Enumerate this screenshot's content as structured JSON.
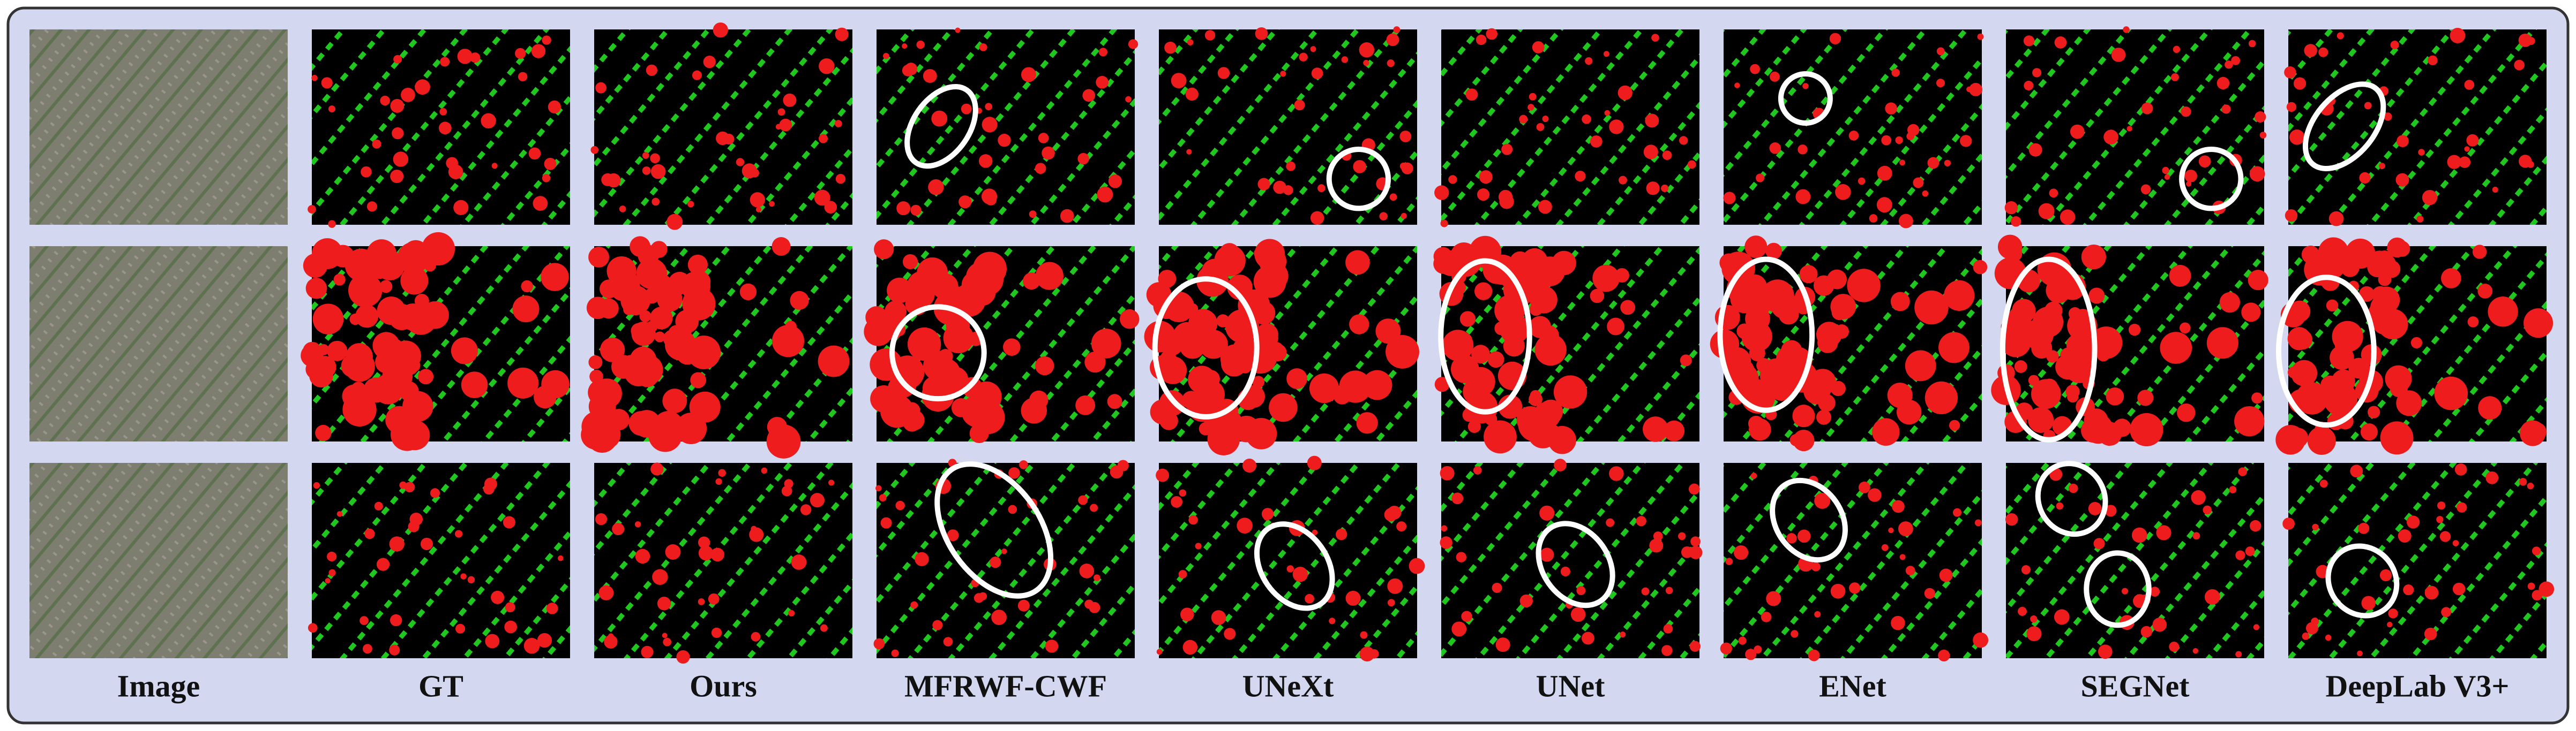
{
  "columns": [
    "Image",
    "GT",
    "Ours",
    "MFRWF-CWF",
    "UNeXt",
    "UNet",
    "ENet",
    "SEGNet",
    "DeepLab V3+"
  ]
}
